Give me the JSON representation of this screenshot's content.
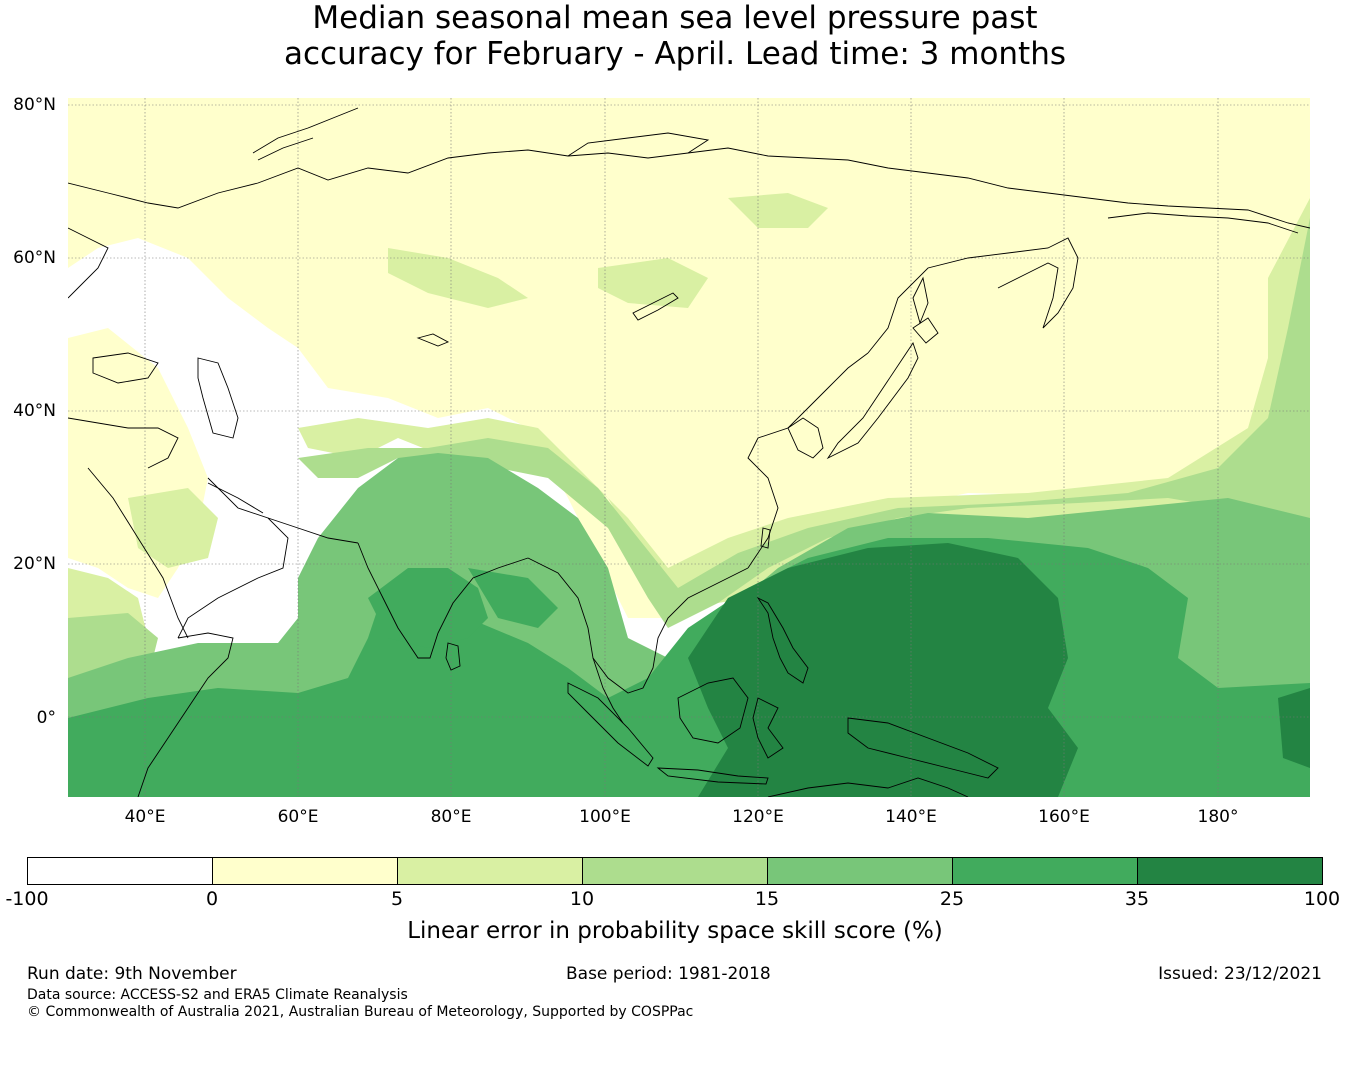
{
  "title": {
    "line1": "Median seasonal mean sea level pressure past",
    "line2": "accuracy for February - April. Lead time: 3 months"
  },
  "map": {
    "lat_labels": [
      "80°N",
      "60°N",
      "40°N",
      "20°N",
      "0°"
    ],
    "lon_labels": [
      "40°E",
      "60°E",
      "80°E",
      "100°E",
      "120°E",
      "140°E",
      "160°E",
      "180°"
    ],
    "grid": true,
    "coastlines": true
  },
  "colorbar": {
    "label": "Linear error in probability space skill score (%)",
    "ticks": [
      "-100",
      "0",
      "5",
      "10",
      "15",
      "25",
      "35",
      "100"
    ],
    "colors": [
      "#ffffff",
      "#ffffcc",
      "#d9f0a3",
      "#addd8e",
      "#78c679",
      "#41ab5d",
      "#238443"
    ]
  },
  "footer": {
    "run_date": "Run date: 9th November",
    "base_period": "Base period: 1981-2018",
    "issued": "Issued: 23/12/2021",
    "data_source": "Data source: ACCESS-S2 and ERA5 Climate Reanalysis",
    "copyright": "© Commonwealth of Australia 2021, Australian Bureau of Meteorology, Supported by COSPPac"
  }
}
